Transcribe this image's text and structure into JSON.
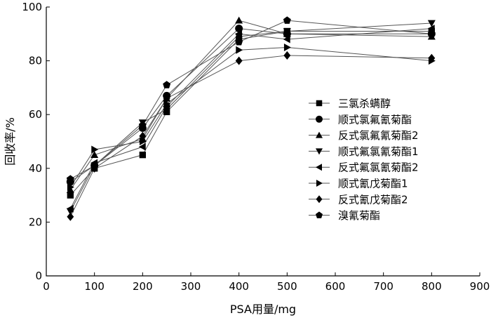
{
  "chart_data": {
    "type": "line",
    "title": "",
    "xlabel": "PSA用量/mg",
    "ylabel": "回收率/%",
    "xlim": [
      0,
      900
    ],
    "ylim": [
      0,
      100
    ],
    "xticks": [
      0,
      100,
      200,
      300,
      400,
      500,
      600,
      700,
      800,
      900
    ],
    "yticks": [
      0,
      20,
      40,
      60,
      80,
      100
    ],
    "grid": false,
    "legend_position": "right-middle",
    "marker_color": "#000000",
    "line_color": "#555555",
    "x": [
      50,
      100,
      200,
      250,
      400,
      500,
      800
    ],
    "series": [
      {
        "name": "三氯杀螨醇",
        "marker": "square",
        "values": [
          30,
          40,
          45,
          61,
          88,
          91,
          91
        ]
      },
      {
        "name": "顺式氯氟氰菊酯",
        "marker": "circle",
        "values": [
          35,
          41,
          55,
          67,
          92,
          90,
          90
        ]
      },
      {
        "name": "反式氯氟氰菊酯2",
        "marker": "triangle-up",
        "values": [
          32,
          45,
          51,
          66,
          95,
          90,
          89
        ]
      },
      {
        "name": "顺式氟氯氰菊酯1",
        "marker": "triangle-down",
        "values": [
          24,
          41,
          57,
          62,
          89,
          91,
          94
        ]
      },
      {
        "name": "反式氟氯氰菊酯2",
        "marker": "triangle-left",
        "values": [
          25,
          42,
          48,
          63,
          90,
          88,
          92
        ]
      },
      {
        "name": "顺式氰戊菊酯1",
        "marker": "triangle-right",
        "values": [
          33,
          47,
          50,
          64,
          84,
          85,
          80
        ]
      },
      {
        "name": "反式氰戊菊酯2",
        "marker": "diamond",
        "values": [
          22,
          40,
          52,
          66,
          80,
          82,
          81
        ]
      },
      {
        "name": "溴氰菊酯",
        "marker": "pentagon",
        "values": [
          36,
          41,
          56,
          71,
          87,
          95,
          90
        ]
      }
    ]
  }
}
